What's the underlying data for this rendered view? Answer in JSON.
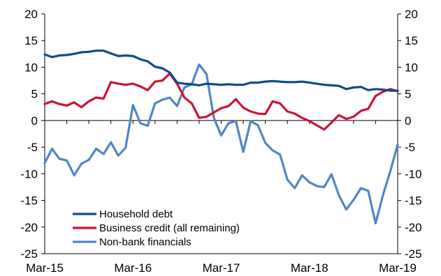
{
  "chart_data": {
    "type": "line",
    "title": "",
    "xlabel": "",
    "ylabel": "",
    "ylim": [
      -25,
      20
    ],
    "yticks": [
      20,
      15,
      10,
      5,
      0,
      -5,
      -10,
      -15,
      -20,
      -25
    ],
    "ytick_labels": [
      "20",
      "15",
      "10",
      "5",
      "0",
      "-5",
      "-10",
      "-15",
      "-20",
      "-25"
    ],
    "y_axes": "left-and-right",
    "grid": false,
    "legend_position": "bottom-left",
    "x_range": [
      "2015-03",
      "2019-03"
    ],
    "xtick_labels": [
      "Mar-15",
      "Mar-16",
      "Mar-17",
      "Mar-18",
      "Mar-19"
    ],
    "x": [
      "2015-03",
      "2015-04",
      "2015-05",
      "2015-06",
      "2015-07",
      "2015-08",
      "2015-09",
      "2015-10",
      "2015-11",
      "2015-12",
      "2016-01",
      "2016-02",
      "2016-03",
      "2016-04",
      "2016-05",
      "2016-06",
      "2016-07",
      "2016-08",
      "2016-09",
      "2016-10",
      "2016-11",
      "2016-12",
      "2017-01",
      "2017-02",
      "2017-03",
      "2017-04",
      "2017-05",
      "2017-06",
      "2017-07",
      "2017-08",
      "2017-09",
      "2017-10",
      "2017-11",
      "2017-12",
      "2018-01",
      "2018-02",
      "2018-03",
      "2018-04",
      "2018-05",
      "2018-06",
      "2018-07",
      "2018-08",
      "2018-09",
      "2018-10",
      "2018-11",
      "2018-12",
      "2019-01",
      "2019-02",
      "2019-03"
    ],
    "series": [
      {
        "name": "Household debt",
        "color": "#0b4d8c",
        "values": [
          12.4,
          11.9,
          12.2,
          12.3,
          12.5,
          12.8,
          12.9,
          13.1,
          13.1,
          12.6,
          12.1,
          12.2,
          12.1,
          11.5,
          11.1,
          10.1,
          9.8,
          9.0,
          7.1,
          6.9,
          6.8,
          6.6,
          6.9,
          6.8,
          6.7,
          6.8,
          6.7,
          6.7,
          7.1,
          7.1,
          7.3,
          7.4,
          7.3,
          7.2,
          7.2,
          7.3,
          7.1,
          6.9,
          6.7,
          6.6,
          6.5,
          5.9,
          6.2,
          6.3,
          5.7,
          5.9,
          5.8,
          5.6,
          5.6
        ]
      },
      {
        "name": "Business credit (all remaining)",
        "color": "#cc1236",
        "values": [
          3.1,
          3.6,
          3.1,
          2.8,
          3.4,
          2.5,
          3.6,
          4.3,
          4.1,
          7.2,
          6.9,
          6.7,
          6.9,
          6.4,
          5.7,
          7.3,
          7.5,
          8.8,
          6.9,
          4.3,
          3.2,
          0.5,
          0.7,
          1.5,
          2.3,
          2.7,
          4.0,
          2.4,
          1.7,
          1.3,
          1.2,
          3.6,
          3.2,
          1.7,
          1.3,
          0.5,
          -0.1,
          -0.9,
          -1.7,
          -0.4,
          1.0,
          0.3,
          0.7,
          1.8,
          2.2,
          4.6,
          5.4,
          5.9,
          5.5
        ]
      },
      {
        "name": "Non-bank financials",
        "color": "#4f86c6",
        "values": [
          -8.0,
          -5.3,
          -7.2,
          -7.5,
          -10.3,
          -8.1,
          -7.4,
          -5.3,
          -6.3,
          -4.1,
          -6.6,
          -5.1,
          2.9,
          -0.5,
          -1.0,
          3.2,
          3.9,
          4.3,
          2.7,
          6.2,
          6.8,
          10.5,
          8.7,
          0.5,
          -2.8,
          -0.5,
          -0.1,
          -5.9,
          -0.1,
          -0.9,
          -4.2,
          -5.6,
          -6.4,
          -11.1,
          -12.7,
          -10.3,
          -11.6,
          -12.3,
          -12.5,
          -10.1,
          -14.0,
          -16.7,
          -14.9,
          -12.7,
          -13.2,
          -19.3,
          -14.0,
          -9.5,
          -4.5
        ]
      }
    ]
  }
}
